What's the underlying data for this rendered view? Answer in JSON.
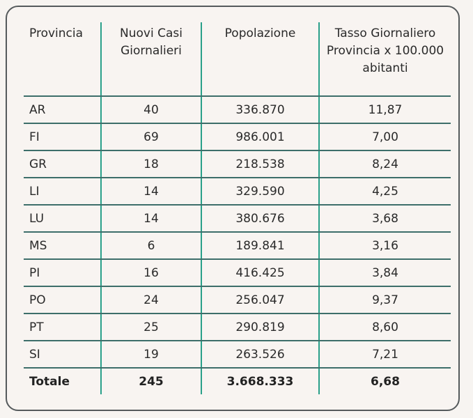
{
  "table": {
    "headers": [
      "Provincia",
      "Nuovi Casi Giornalieri",
      "Popolazione",
      "Tasso Giornaliero Provincia x 100.000 abitanti"
    ],
    "rows": [
      [
        "AR",
        "40",
        "336.870",
        "11,87"
      ],
      [
        "FI",
        "69",
        "986.001",
        "7,00"
      ],
      [
        "GR",
        "18",
        "218.538",
        "8,24"
      ],
      [
        "LI",
        "14",
        "329.590",
        "4,25"
      ],
      [
        "LU",
        "14",
        "380.676",
        "3,68"
      ],
      [
        "MS",
        "6",
        "189.841",
        "3,16"
      ],
      [
        "PI",
        "16",
        "416.425",
        "3,84"
      ],
      [
        "PO",
        "24",
        "256.047",
        "9,37"
      ],
      [
        "PT",
        "25",
        "290.819",
        "8,60"
      ],
      [
        "SI",
        "19",
        "263.526",
        "7,21"
      ]
    ],
    "total": [
      "Totale",
      "245",
      "3.668.333",
      "6,68"
    ]
  },
  "colors": {
    "background": "#f7f4f1",
    "card_border": "#555a5c",
    "vertical_rule": "#2aa08a",
    "horizontal_rule": "#3d6e6a"
  }
}
